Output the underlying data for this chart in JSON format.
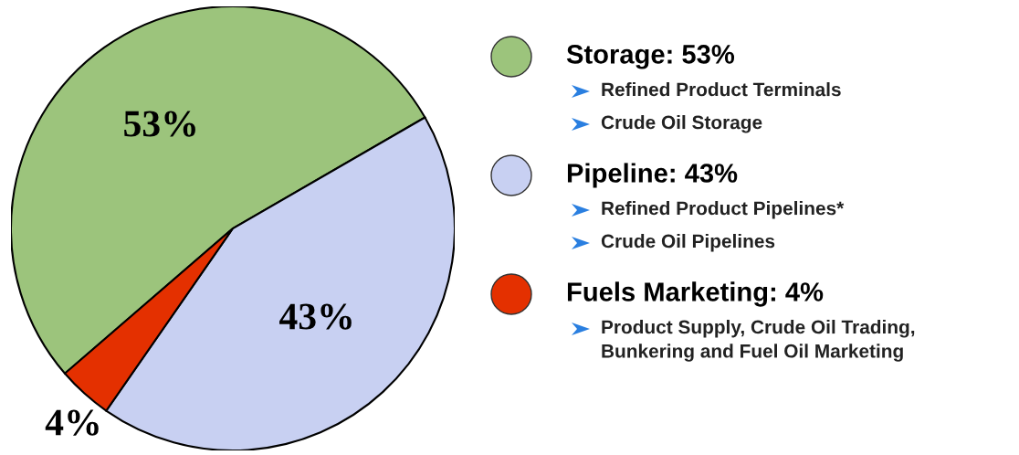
{
  "chart_data": {
    "type": "pie",
    "categories": [
      "Storage: 53%",
      "Pipeline: 43%",
      "Fuels Marketing: 4%"
    ],
    "values": [
      53,
      43,
      4
    ],
    "colors": [
      "#9cc47c",
      "#c8d0f2",
      "#e43000"
    ],
    "value_labels": [
      "53%",
      "43%",
      "4%"
    ],
    "legend": "right",
    "annotations": [
      "Refined Product Terminals",
      "Crude Oil Storage",
      "Refined Product Pipelines*",
      "Crude Oil Pipelines",
      "Product Supply, Crude Oil Trading,\nBunkering and Fuel Oil Marketing"
    ]
  }
}
